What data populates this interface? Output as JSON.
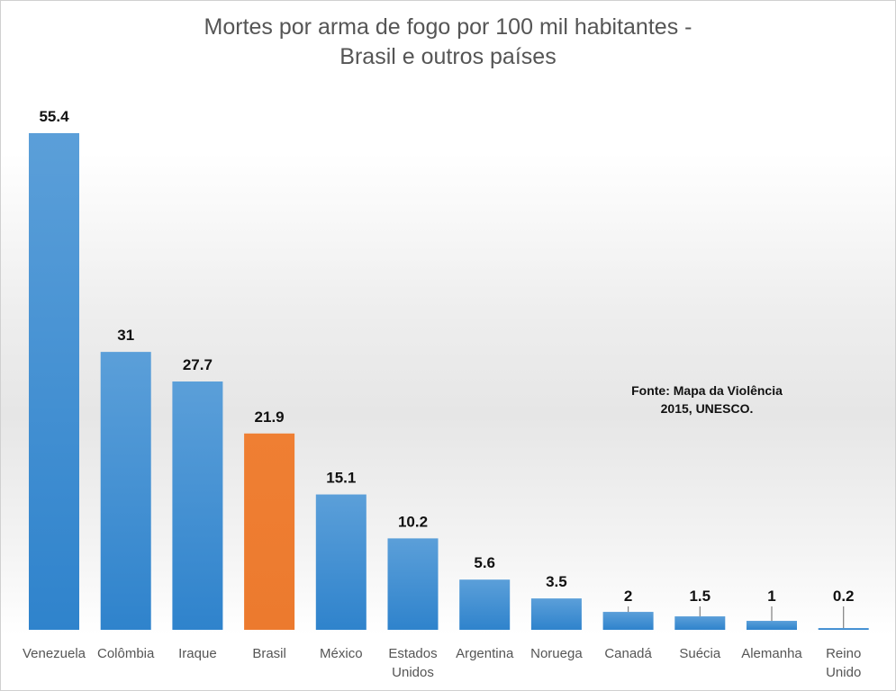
{
  "chart_data": {
    "type": "bar",
    "title": "Mortes por arma de fogo por 100 mil habitantes - Brasil e outros países",
    "title_lines": [
      "Mortes por arma de fogo por 100 mil habitantes -",
      "Brasil e outros países"
    ],
    "categories": [
      "Venezuela",
      "Colômbia",
      "Iraque",
      "Brasil",
      "México",
      "Estados Unidos",
      "Argentina",
      "Noruega",
      "Canadá",
      "Suécia",
      "Alemanha",
      "Reino Unido"
    ],
    "category_lines": [
      [
        "Venezuela"
      ],
      [
        "Colômbia"
      ],
      [
        "Iraque"
      ],
      [
        "Brasil"
      ],
      [
        "México"
      ],
      [
        "Estados",
        "Unidos"
      ],
      [
        "Argentina"
      ],
      [
        "Noruega"
      ],
      [
        "Canadá"
      ],
      [
        "Suécia"
      ],
      [
        "Alemanha"
      ],
      [
        "Reino",
        "Unido"
      ]
    ],
    "values": [
      55.4,
      31,
      27.7,
      21.9,
      15.1,
      10.2,
      5.6,
      3.5,
      2,
      1.5,
      1,
      0.2
    ],
    "data_labels": [
      "55.4",
      "31",
      "27.7",
      "21.9",
      "15.1",
      "10.2",
      "5.6",
      "3.5",
      "2",
      "1.5",
      "1",
      "0.2"
    ],
    "highlight_category": "Brasil",
    "colors": {
      "default": "#4a90d4",
      "highlight": "#ed7d31"
    },
    "xlabel": "",
    "ylabel": "",
    "ylim": [
      0,
      55.4
    ],
    "grid": false,
    "legend": "none",
    "annotation": [
      "Fonte: Mapa da Violência",
      "2015, UNESCO."
    ]
  }
}
